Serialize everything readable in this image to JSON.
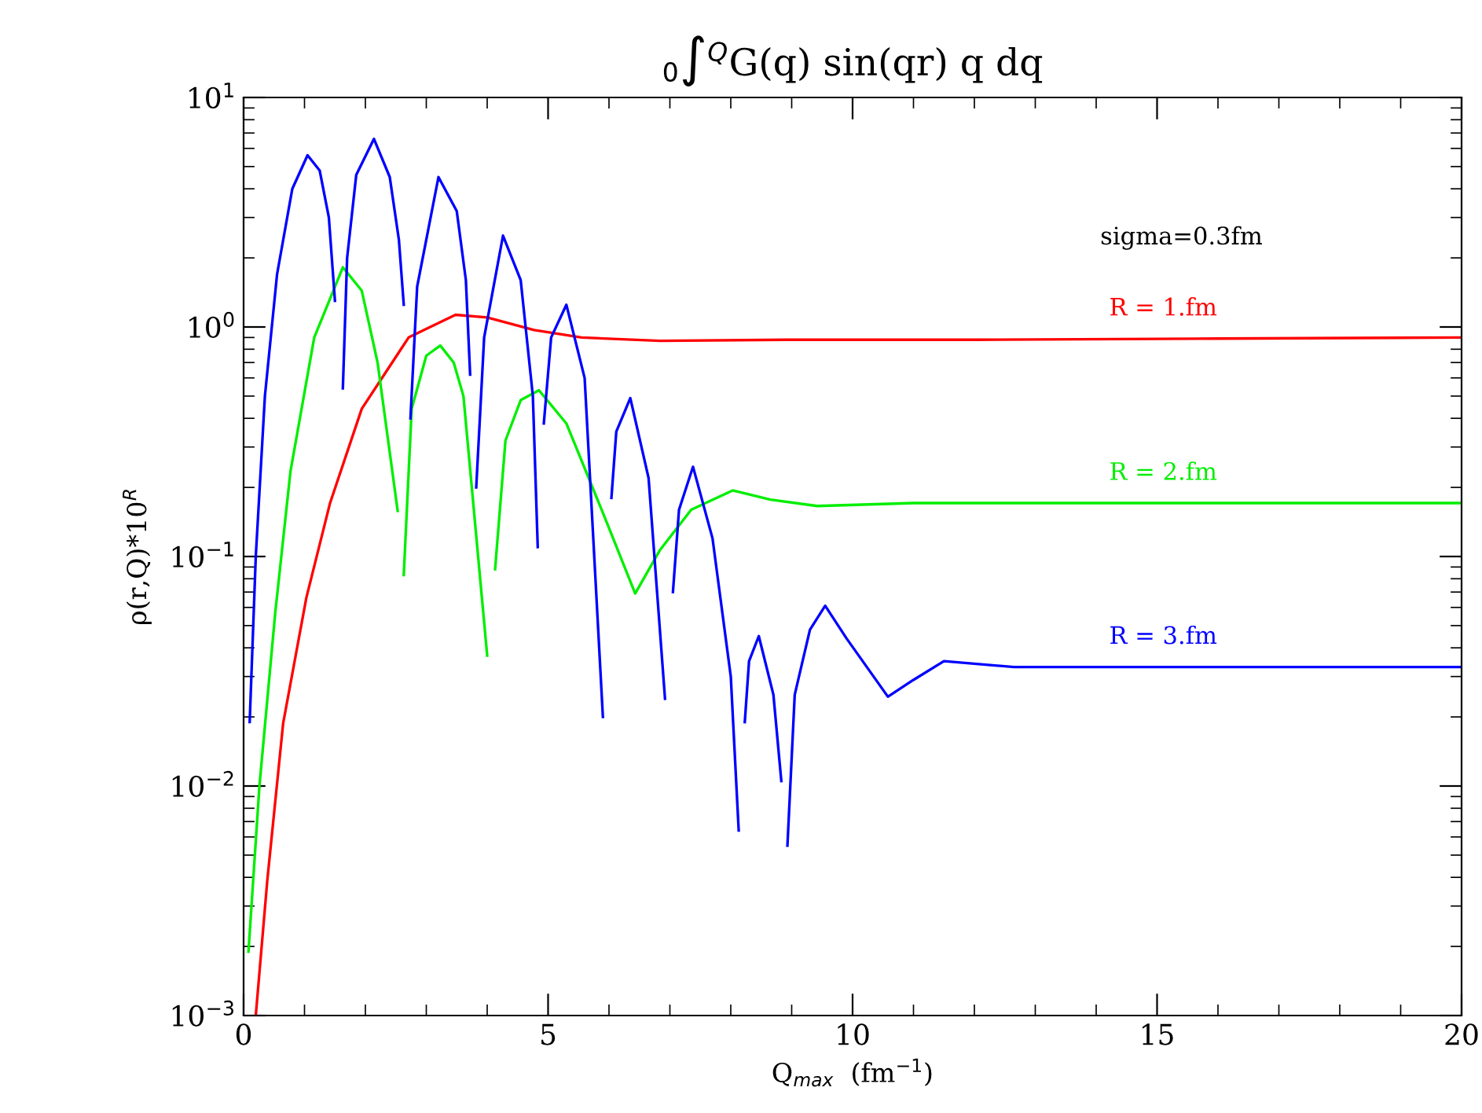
{
  "chart_data": {
    "type": "line",
    "title": "$_{0}$∫$^{Q}$G(q) sin(qr) q dq",
    "xlabel": "Q$_{max}$  (fm$^{−1}$)",
    "ylabel": "ρ(r,Q)*10$^{R}$",
    "log": "y",
    "xlim": [
      0,
      20
    ],
    "ylim": [
      0.001,
      10
    ],
    "xticks": [
      0,
      5,
      10,
      15,
      20
    ],
    "yticks": [
      {
        "value": 0.001,
        "label": "10$^{−3}$"
      },
      {
        "value": 0.01,
        "label": "10$^{−2}$"
      },
      {
        "value": 0.1,
        "label": "10$^{−1}$"
      },
      {
        "value": 1,
        "label": "10$^{0}$"
      },
      {
        "value": 10,
        "label": "10$^{1}$"
      }
    ],
    "grid": false,
    "legend": false,
    "marker": "none",
    "line_style": "solid",
    "annotations": [
      "sigma=0.3fm"
    ],
    "series": [
      {
        "name": "R = 1.fm",
        "color": "#ff0000",
        "x": [
          0.2,
          0.39,
          0.65,
          1.03,
          1.42,
          1.94,
          2.71,
          3.48,
          4.0,
          4.77,
          5.55,
          6.84,
          8.9,
          12,
          16,
          20
        ],
        "values": [
          0.001,
          0.0039,
          0.0188,
          0.066,
          0.171,
          0.44,
          0.9,
          1.13,
          1.1,
          0.97,
          0.9,
          0.87,
          0.88,
          0.88,
          0.89,
          0.9
        ]
      },
      {
        "name": "R = 2.fm",
        "color": "#00ee00",
        "x": [
          0.08,
          0.26,
          0.52,
          0.77,
          1.16,
          1.63,
          1.94,
          2.2,
          2.53,
          2.58,
          2.63,
          2.76,
          3.0,
          3.23,
          3.45,
          3.61,
          4.0,
          4.06,
          4.13,
          4.3,
          4.55,
          4.85,
          5.3,
          5.94,
          6.43,
          6.84,
          7.35,
          8.03,
          8.65,
          9.42,
          11,
          14,
          20
        ],
        "values": [
          0.0019,
          0.01,
          0.057,
          0.235,
          0.9,
          1.82,
          1.44,
          0.7,
          0.158,
          null,
          0.083,
          0.44,
          0.75,
          0.83,
          0.7,
          0.5,
          0.037,
          null,
          0.088,
          0.32,
          0.48,
          0.53,
          0.38,
          0.146,
          0.069,
          0.107,
          0.16,
          0.194,
          0.177,
          0.166,
          0.171,
          0.171,
          0.171
        ]
      },
      {
        "name": "R = 3.fm",
        "color": "#0000ff",
        "x": [
          0.1,
          0.2,
          0.35,
          0.55,
          0.8,
          1.05,
          1.25,
          1.4,
          1.5,
          1.56,
          1.63,
          1.7,
          1.85,
          2.14,
          2.4,
          2.55,
          2.63,
          2.68,
          2.74,
          2.85,
          3.2,
          3.5,
          3.65,
          3.72,
          3.77,
          3.82,
          3.95,
          4.26,
          4.55,
          4.75,
          4.83,
          4.88,
          4.93,
          5.05,
          5.3,
          5.6,
          5.9,
          5.97,
          6.04,
          6.12,
          6.35,
          6.65,
          6.92,
          6.98,
          7.05,
          7.15,
          7.38,
          7.7,
          8.0,
          8.13,
          8.18,
          8.23,
          8.3,
          8.46,
          8.7,
          8.83,
          8.88,
          8.93,
          9.05,
          9.3,
          9.55,
          9.9,
          10.58,
          11.0,
          11.5,
          12.65,
          14,
          20
        ],
        "values": [
          0.019,
          0.1,
          0.5,
          1.7,
          4.0,
          5.6,
          4.8,
          3.0,
          1.3,
          null,
          0.54,
          2.0,
          4.6,
          6.6,
          4.5,
          2.4,
          1.25,
          null,
          0.4,
          1.5,
          4.5,
          3.2,
          1.6,
          0.62,
          null,
          0.2,
          0.9,
          2.5,
          1.6,
          0.5,
          0.11,
          null,
          0.38,
          0.9,
          1.25,
          0.6,
          0.02,
          null,
          0.18,
          0.35,
          0.49,
          0.22,
          0.024,
          null,
          0.07,
          0.16,
          0.246,
          0.12,
          0.03,
          0.0064,
          null,
          0.019,
          0.035,
          0.045,
          0.025,
          0.0105,
          null,
          0.0055,
          0.025,
          0.048,
          0.061,
          0.044,
          0.0245,
          0.029,
          0.035,
          0.033,
          0.033,
          0.033
        ]
      }
    ]
  }
}
